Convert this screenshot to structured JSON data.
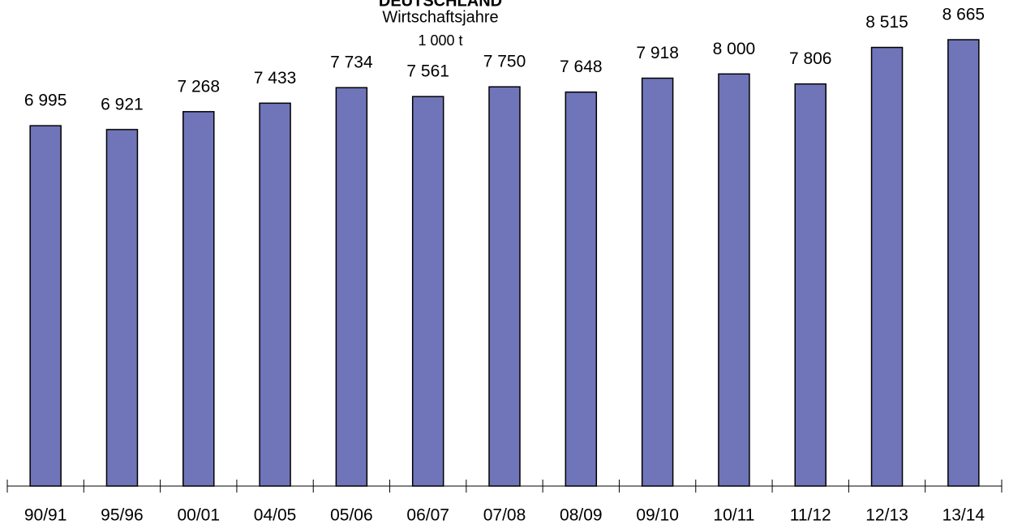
{
  "chart_data": {
    "type": "bar",
    "title": "DEUTSCHLAND",
    "subtitle": "Wirtschaftsjahre",
    "unit": "1 000 t",
    "categories": [
      "90/91",
      "95/96",
      "00/01",
      "04/05",
      "05/06",
      "06/07",
      "07/08",
      "08/09",
      "09/10",
      "10/11",
      "11/12",
      "12/13",
      "13/14"
    ],
    "values": [
      6995,
      6921,
      7268,
      7433,
      7734,
      7561,
      7750,
      7648,
      7918,
      8000,
      7806,
      8515,
      8665
    ],
    "value_labels": [
      "6 995",
      "6 921",
      "7 268",
      "7 433",
      "7 734",
      "7 561",
      "7 750",
      "7 648",
      "7 918",
      "8 000",
      "7 806",
      "8 515",
      "8 665"
    ],
    "color": "#7074b8"
  }
}
